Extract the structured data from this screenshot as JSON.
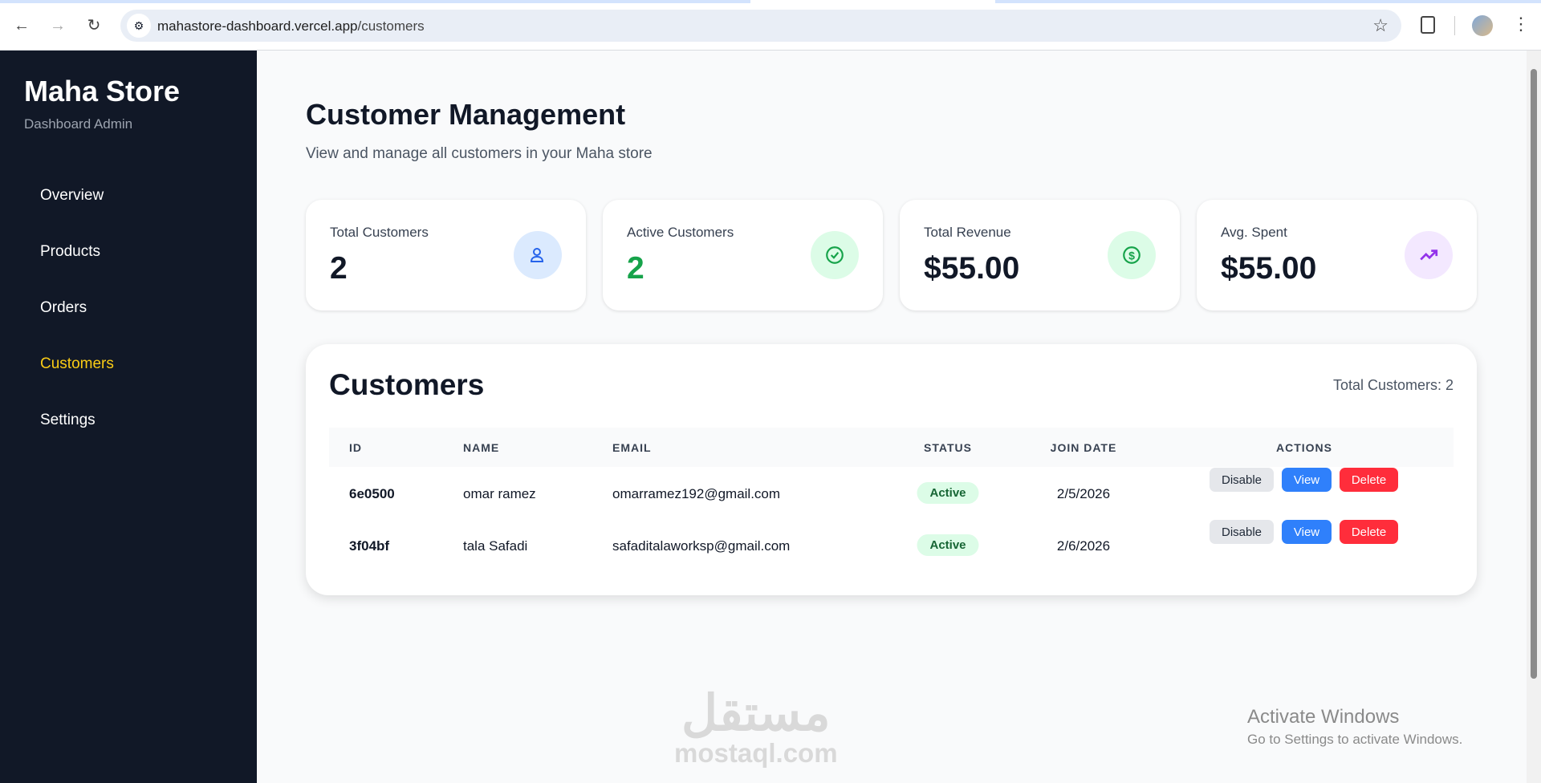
{
  "browser": {
    "url_host": "mahastore-dashboard.vercel.app",
    "url_path": "/customers"
  },
  "sidebar": {
    "brand": "Maha Store",
    "subtitle": "Dashboard Admin",
    "items": [
      {
        "label": "Overview",
        "active": false
      },
      {
        "label": "Products",
        "active": false
      },
      {
        "label": "Orders",
        "active": false
      },
      {
        "label": "Customers",
        "active": true
      },
      {
        "label": "Settings",
        "active": false
      }
    ],
    "active_color": "#facc15"
  },
  "header": {
    "title": "Customer Management",
    "subtitle": "View and manage all customers in your Maha store"
  },
  "stats": [
    {
      "label": "Total Customers",
      "value": "2",
      "icon": "user-icon",
      "color": "#2563eb",
      "bg": "#dbeafe"
    },
    {
      "label": "Active Customers",
      "value": "2",
      "icon": "check-circle-icon",
      "color": "#16a34a",
      "bg": "#dcfce7"
    },
    {
      "label": "Total Revenue",
      "value": "$55.00",
      "icon": "dollar-circle-icon",
      "color": "#16a34a",
      "bg": "#dcfce7"
    },
    {
      "label": "Avg. Spent",
      "value": "$55.00",
      "icon": "trending-up-icon",
      "color": "#9333ea",
      "bg": "#f3e8ff"
    }
  ],
  "customers": {
    "title": "Customers",
    "total_label": "Total Customers: 2",
    "columns": [
      "ID",
      "NAME",
      "EMAIL",
      "STATUS",
      "JOIN DATE",
      "ACTIONS"
    ],
    "rows": [
      {
        "id": "6e0500",
        "name": "omar ramez",
        "email": "omarramez192@gmail.com",
        "status": "Active",
        "join_date": "2/5/2026"
      },
      {
        "id": "3f04bf",
        "name": "tala Safadi",
        "email": "safaditalaworksp@gmail.com",
        "status": "Active",
        "join_date": "2/6/2026"
      }
    ],
    "actions": {
      "disable": "Disable",
      "view": "View",
      "delete": "Delete"
    }
  },
  "watermark": {
    "logo_text": "مستقل",
    "site": "mostaql.com"
  },
  "os_notice": {
    "title": "Activate Windows",
    "detail": "Go to Settings to activate Windows."
  }
}
